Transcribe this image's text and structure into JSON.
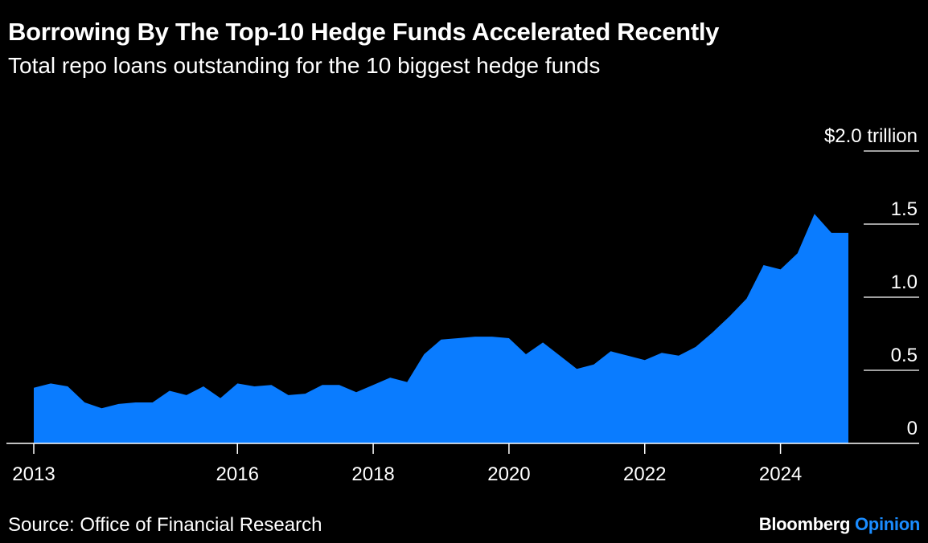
{
  "header": {
    "title": "Borrowing By The Top-10 Hedge Funds Accelerated Recently",
    "subtitle": "Total repo loans outstanding for the 10 biggest hedge funds"
  },
  "footer": {
    "source": "Source: Office of Financial Research",
    "brand_primary": "Bloomberg",
    "brand_secondary": "Opinion"
  },
  "colors": {
    "background": "#000000",
    "area_fill": "#0a7cff",
    "text": "#ffffff",
    "brand_accent": "#1a8cff"
  },
  "chart_data": {
    "type": "area",
    "title": "Borrowing By The Top-10 Hedge Funds Accelerated Recently",
    "subtitle": "Total repo loans outstanding for the 10 biggest hedge funds",
    "xlabel": "",
    "ylabel": "",
    "ylim": [
      0,
      2.0
    ],
    "xlim": [
      2013.0,
      2025.5
    ],
    "y_axis_position": "right",
    "y_ticks": [
      {
        "value": 0,
        "label": "0"
      },
      {
        "value": 0.5,
        "label": "0.5"
      },
      {
        "value": 1.0,
        "label": "1.0"
      },
      {
        "value": 1.5,
        "label": "1.5"
      },
      {
        "value": 2.0,
        "label": "$2.0 trillion"
      }
    ],
    "x_ticks": [
      {
        "value": 2013,
        "label": "2013"
      },
      {
        "value": 2016,
        "label": "2016"
      },
      {
        "value": 2018,
        "label": "2018"
      },
      {
        "value": 2020,
        "label": "2020"
      },
      {
        "value": 2022,
        "label": "2022"
      },
      {
        "value": 2024,
        "label": "2024"
      }
    ],
    "series": [
      {
        "x": [
          2013.0,
          2013.25,
          2013.5,
          2013.75,
          2014.0,
          2014.25,
          2014.5,
          2014.75,
          2015.0,
          2015.25,
          2015.5,
          2015.75,
          2016.0,
          2016.25,
          2016.5,
          2016.75,
          2017.0,
          2017.25,
          2017.5,
          2017.75,
          2018.0,
          2018.25,
          2018.5,
          2018.75,
          2019.0,
          2019.25,
          2019.5,
          2019.75,
          2020.0,
          2020.25,
          2020.5,
          2020.75,
          2021.0,
          2021.25,
          2021.5,
          2021.75,
          2022.0,
          2022.25,
          2022.5,
          2022.75,
          2023.0,
          2023.25,
          2023.5,
          2023.75,
          2024.0,
          2024.25,
          2024.5,
          2024.75,
          2025.0
        ],
        "values": [
          0.38,
          0.41,
          0.39,
          0.28,
          0.24,
          0.27,
          0.28,
          0.28,
          0.36,
          0.33,
          0.39,
          0.31,
          0.41,
          0.39,
          0.4,
          0.33,
          0.34,
          0.4,
          0.4,
          0.35,
          0.4,
          0.45,
          0.42,
          0.61,
          0.71,
          0.72,
          0.73,
          0.73,
          0.72,
          0.61,
          0.69,
          0.6,
          0.51,
          0.54,
          0.63,
          0.6,
          0.57,
          0.62,
          0.6,
          0.66,
          0.76,
          0.87,
          0.99,
          1.22,
          1.19,
          1.3,
          1.57,
          1.44,
          1.44
        ]
      }
    ],
    "grid": false
  }
}
